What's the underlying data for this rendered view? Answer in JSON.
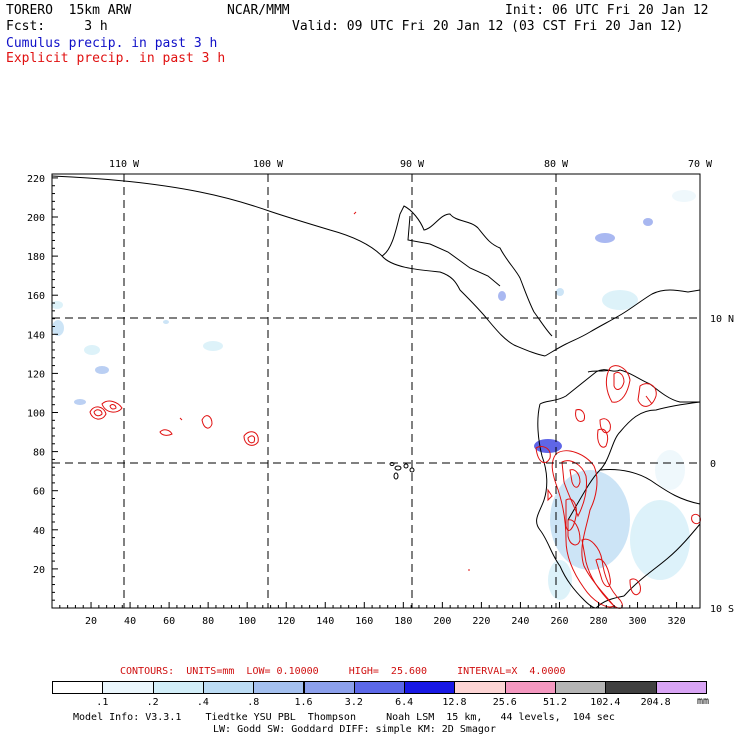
{
  "header": {
    "line1_left": "TORERO  15km ARW",
    "line1_center": "NCAR/MMM",
    "line1_right": "Init: 06 UTC Fri 20 Jan 12",
    "line2_left": "Fcst:     3 h",
    "line2_right": "Valid: 09 UTC Fri 20 Jan 12 (03 CST Fri 20 Jan 12)",
    "legend_cumulus": "Cumulus precip. in past 3 h",
    "legend_explicit": "Explicit precip. in past 3 h"
  },
  "map": {
    "lon_labels": [
      "110 W",
      "100 W",
      "90 W",
      "80 W",
      "70 W"
    ],
    "lat_labels": [
      "10 N",
      "0",
      "10 S"
    ],
    "y_ticks": [
      "220",
      "200",
      "180",
      "160",
      "140",
      "120",
      "100",
      "80",
      "60",
      "40",
      "20"
    ],
    "x_ticks": [
      "20",
      "40",
      "60",
      "80",
      "100",
      "120",
      "140",
      "160",
      "180",
      "200",
      "220",
      "240",
      "260",
      "280",
      "300",
      "320"
    ]
  },
  "contour_info": "CONTOURS:  UNITS=mm  LOW= 0.10000     HIGH=  25.600     INTERVAL=X  4.0000",
  "colorbar": {
    "labels": [
      ".1",
      ".2",
      ".4",
      ".8",
      "1.6",
      "3.2",
      "6.4",
      "12.8",
      "25.6",
      "51.2",
      "102.4",
      "204.8"
    ],
    "unit": "mm",
    "colors": [
      "#ffffff",
      "#eaf6fc",
      "#d2eef8",
      "#bcdcf4",
      "#a4c0ef",
      "#8ca0ec",
      "#5c68e8",
      "#1818e4",
      "#fcd4d4",
      "#f498c0",
      "#b4b4b4",
      "#404040",
      "#d8a4f4"
    ]
  },
  "footer": {
    "line1": "Model Info: V3.3.1    Tiedtke YSU PBL  Thompson     Noah LSM  15 km,   44 levels,  104 sec",
    "line2": "LW: Godd SW: Goddard DIFF: simple KM: 2D Smagor"
  }
}
